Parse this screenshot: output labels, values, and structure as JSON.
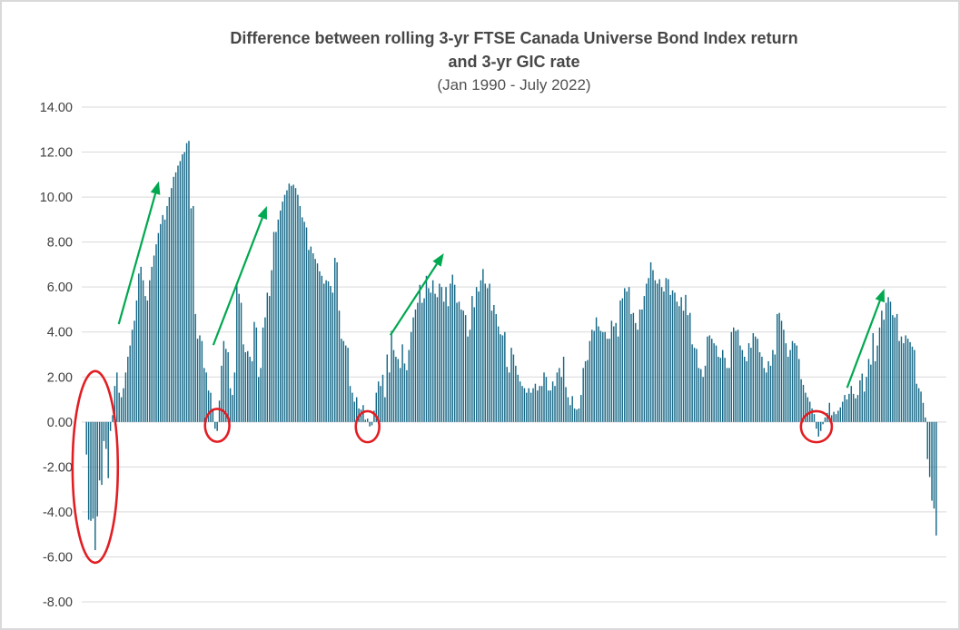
{
  "title": {
    "line1": "Difference between rolling 3-yr FTSE Canada Universe Bond Index return",
    "line2": "and 3-yr GIC rate",
    "subtitle": "(Jan 1990 - July 2022)"
  },
  "y_axis": {
    "tick_labels": [
      "14.00",
      "12.00",
      "10.00",
      "8.00",
      "6.00",
      "4.00",
      "2.00",
      "0.00",
      "-2.00",
      "-4.00",
      "-6.00",
      "-8.00"
    ]
  },
  "colors": {
    "bar": "#166887",
    "gridline": "#D9D9D9",
    "arrow_green": "#00A850",
    "ellipse_red": "#E11E23",
    "axis_label": "#404040",
    "title_gray": "#474747",
    "frame": "#D9D9D9"
  },
  "chart_data": {
    "type": "bar",
    "title": "Difference between rolling 3-yr FTSE Canada Universe Bond Index return and 3-yr GIC rate",
    "subtitle": "(Jan 1990 - July 2022)",
    "x_unit": "month",
    "x_start": "Jan 1990",
    "x_end": "July 2022",
    "xlabel": "",
    "ylabel": "",
    "ylim": [
      -8,
      14
    ],
    "y_tick_step": 2,
    "grid": true,
    "legend": false,
    "x_axis_labels_visible": false,
    "series": [
      {
        "name": "Rolling 3-yr bond index return minus 3-yr GIC rate (pct points)",
        "values": [
          -1.45,
          -4.35,
          -4.4,
          -4.3,
          -5.7,
          -4.2,
          -2.6,
          -2.8,
          -0.85,
          -1.2,
          -2.5,
          -0.4,
          0.3,
          1.6,
          2.2,
          1.3,
          1.1,
          1.5,
          2.2,
          2.9,
          3.4,
          4.1,
          4.5,
          5.4,
          6.6,
          6.9,
          6.3,
          5.6,
          5.4,
          6.3,
          6.9,
          7.4,
          7.9,
          8.4,
          8.8,
          9.2,
          9.0,
          9.6,
          10.0,
          10.4,
          10.9,
          11.1,
          11.4,
          11.6,
          11.9,
          12.0,
          12.4,
          12.5,
          9.5,
          9.6,
          4.8,
          3.7,
          3.85,
          3.6,
          2.4,
          2.2,
          1.4,
          1.3,
          0.6,
          -0.3,
          -0.4,
          0.95,
          2.5,
          3.6,
          3.25,
          3.1,
          1.5,
          1.2,
          2.2,
          6.1,
          5.7,
          5.3,
          3.45,
          3.1,
          3.15,
          2.9,
          2.7,
          4.45,
          4.2,
          2.0,
          2.4,
          4.2,
          4.65,
          5.75,
          5.6,
          6.75,
          8.45,
          8.45,
          9.0,
          9.4,
          9.8,
          10.1,
          10.3,
          10.6,
          10.5,
          10.55,
          10.4,
          10.1,
          9.6,
          9.1,
          8.9,
          8.65,
          7.65,
          7.8,
          7.5,
          7.25,
          7.05,
          6.7,
          6.5,
          6.15,
          6.3,
          6.25,
          6.05,
          5.75,
          7.3,
          7.1,
          4.95,
          3.7,
          3.6,
          3.4,
          3.3,
          1.6,
          1.3,
          0.9,
          1.1,
          0.6,
          0.55,
          0.75,
          0.1,
          0.15,
          -0.2,
          -0.15,
          0.5,
          1.3,
          1.8,
          1.6,
          2.1,
          1.1,
          3.0,
          2.2,
          4.05,
          3.2,
          2.9,
          2.8,
          2.4,
          3.45,
          2.6,
          2.3,
          3.2,
          4.0,
          4.65,
          5.0,
          5.3,
          6.1,
          5.3,
          5.5,
          6.5,
          5.95,
          5.75,
          6.3,
          5.7,
          5.55,
          6.15,
          6.0,
          5.35,
          6.0,
          5.15,
          6.15,
          6.55,
          6.1,
          5.3,
          5.35,
          5.0,
          4.95,
          4.75,
          3.8,
          4.1,
          5.6,
          5.1,
          6.0,
          5.8,
          6.3,
          6.8,
          6.15,
          5.95,
          6.15,
          4.95,
          5.2,
          4.8,
          4.25,
          3.9,
          3.85,
          4.0,
          2.45,
          2.2,
          3.3,
          3.0,
          2.5,
          2.1,
          1.8,
          1.6,
          1.5,
          1.3,
          1.5,
          1.3,
          1.5,
          1.7,
          1.4,
          1.6,
          1.6,
          2.2,
          2.0,
          1.4,
          1.4,
          1.8,
          1.6,
          2.2,
          2.4,
          2.0,
          2.9,
          1.55,
          1.1,
          0.75,
          1.15,
          0.6,
          0.55,
          0.6,
          1.2,
          2.4,
          2.7,
          2.75,
          3.6,
          4.1,
          4.05,
          4.65,
          4.25,
          4.05,
          4.0,
          4.0,
          3.7,
          3.7,
          4.5,
          4.25,
          4.4,
          3.8,
          5.4,
          5.5,
          5.95,
          5.8,
          6.0,
          4.8,
          4.85,
          4.4,
          4.1,
          5.0,
          5.0,
          5.6,
          6.15,
          6.4,
          7.1,
          6.75,
          6.3,
          6.15,
          6.35,
          6.0,
          5.8,
          6.4,
          6.35,
          5.65,
          5.85,
          5.75,
          5.35,
          5.15,
          5.55,
          4.95,
          5.65,
          4.75,
          4.85,
          3.45,
          3.3,
          3.25,
          2.4,
          2.35,
          2.0,
          2.5,
          3.8,
          3.85,
          3.7,
          3.5,
          3.4,
          2.9,
          2.85,
          3.2,
          2.85,
          2.4,
          2.4,
          4.0,
          4.2,
          4.05,
          4.1,
          3.4,
          3.2,
          2.9,
          2.7,
          3.5,
          3.3,
          3.95,
          3.8,
          3.7,
          3.1,
          2.9,
          2.4,
          2.2,
          2.7,
          2.5,
          3.2,
          3.0,
          4.8,
          4.85,
          4.5,
          4.1,
          3.5,
          2.9,
          3.2,
          3.6,
          3.5,
          3.4,
          2.8,
          1.9,
          1.65,
          1.3,
          1.1,
          0.9,
          0.6,
          0.35,
          -0.3,
          -0.65,
          -0.4,
          -0.1,
          0.2,
          0.4,
          0.85,
          0.3,
          0.45,
          0.35,
          0.5,
          0.65,
          0.9,
          1.2,
          1.0,
          1.25,
          1.6,
          1.25,
          1.05,
          1.2,
          1.85,
          2.15,
          1.35,
          2.0,
          2.8,
          2.55,
          3.95,
          2.7,
          3.4,
          4.2,
          4.95,
          4.55,
          5.3,
          5.55,
          5.35,
          4.75,
          4.65,
          4.8,
          3.6,
          3.8,
          3.5,
          3.85,
          3.7,
          3.55,
          3.35,
          3.2,
          1.7,
          1.5,
          1.35,
          0.85,
          0.2,
          -1.65,
          -2.45,
          -3.5,
          -3.85,
          -5.05
        ]
      }
    ],
    "annotations": {
      "arrows": [
        {
          "from_month": 14.8,
          "from_value": 4.35,
          "to_month": 33.2,
          "to_value": 10.7
        },
        {
          "from_month": 58.2,
          "from_value": 3.42,
          "to_month": 82.8,
          "to_value": 9.6
        },
        {
          "from_month": 139.5,
          "from_value": 3.86,
          "to_month": 164.0,
          "to_value": 7.5
        },
        {
          "from_month": 349.1,
          "from_value": 1.52,
          "to_month": 366.2,
          "to_value": 5.92
        }
      ],
      "ellipses": [
        {
          "center_month": 4.0,
          "center_value": -2.0,
          "radius_months": 10.4,
          "radius_value": 4.26
        },
        {
          "center_month": 60.0,
          "center_value": -0.15,
          "radius_months": 5.6,
          "radius_value": 0.73
        },
        {
          "center_month": 129.0,
          "center_value": -0.21,
          "radius_months": 5.4,
          "radius_value": 0.69
        },
        {
          "center_month": 335.0,
          "center_value": -0.21,
          "radius_months": 7.1,
          "radius_value": 0.69
        }
      ]
    }
  }
}
